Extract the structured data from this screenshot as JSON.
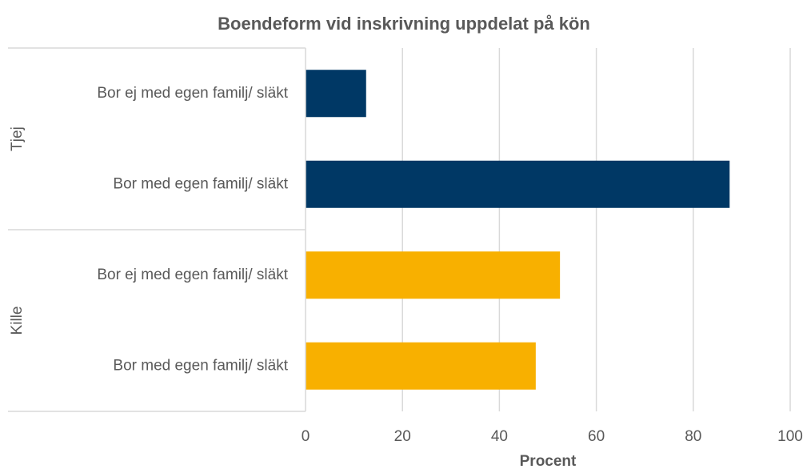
{
  "chart_data": {
    "type": "bar",
    "title": "Boendeform vid inskrivning uppdelat på kön",
    "xlabel": "Procent",
    "series": [
      {
        "name": "Tjej",
        "color": "#003865",
        "categories": [
          "Bor ej med egen familj/ släkt",
          "Bor med egen familj/ släkt"
        ],
        "values": [
          12.5,
          87.5
        ]
      },
      {
        "name": "Kille",
        "color": "#f8b000",
        "categories": [
          "Bor ej med egen familj/ släkt",
          "Bor med egen familj/ släkt"
        ],
        "values": [
          52.5,
          47.5
        ]
      }
    ],
    "xlim": [
      0,
      100
    ],
    "xticks": [
      0,
      20,
      40,
      60,
      80,
      100
    ],
    "grid": true
  }
}
